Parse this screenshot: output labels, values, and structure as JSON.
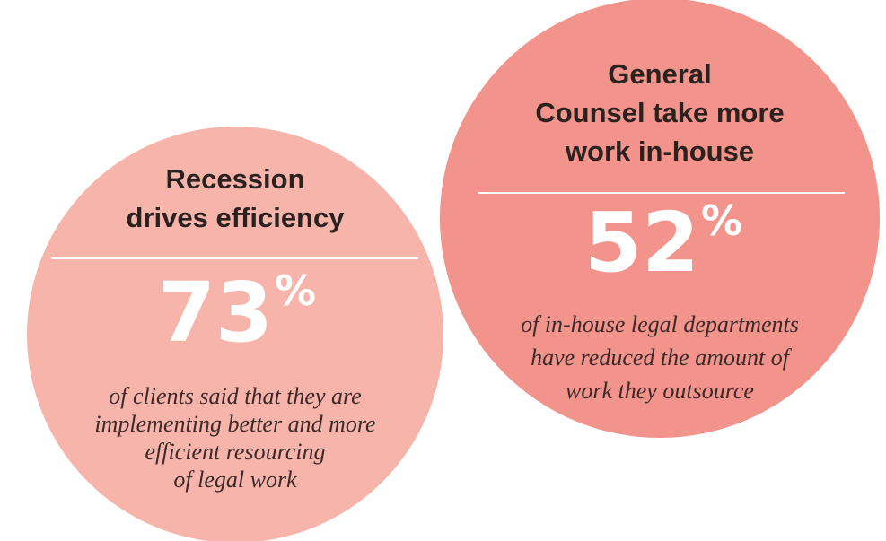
{
  "circles": [
    {
      "title": [
        "Recession",
        "drives efficiency"
      ],
      "stat": "73",
      "stat_unit": "%",
      "description": [
        "of clients said that they are",
        "implementing better and more",
        "efficient resourcing",
        "of legal work"
      ]
    },
    {
      "title": [
        "General",
        "Counsel take more",
        "work in-house"
      ],
      "stat": "52",
      "stat_unit": "%",
      "description": [
        "of in-house legal departments",
        "have reduced the amount of",
        "work they outsource"
      ]
    }
  ]
}
